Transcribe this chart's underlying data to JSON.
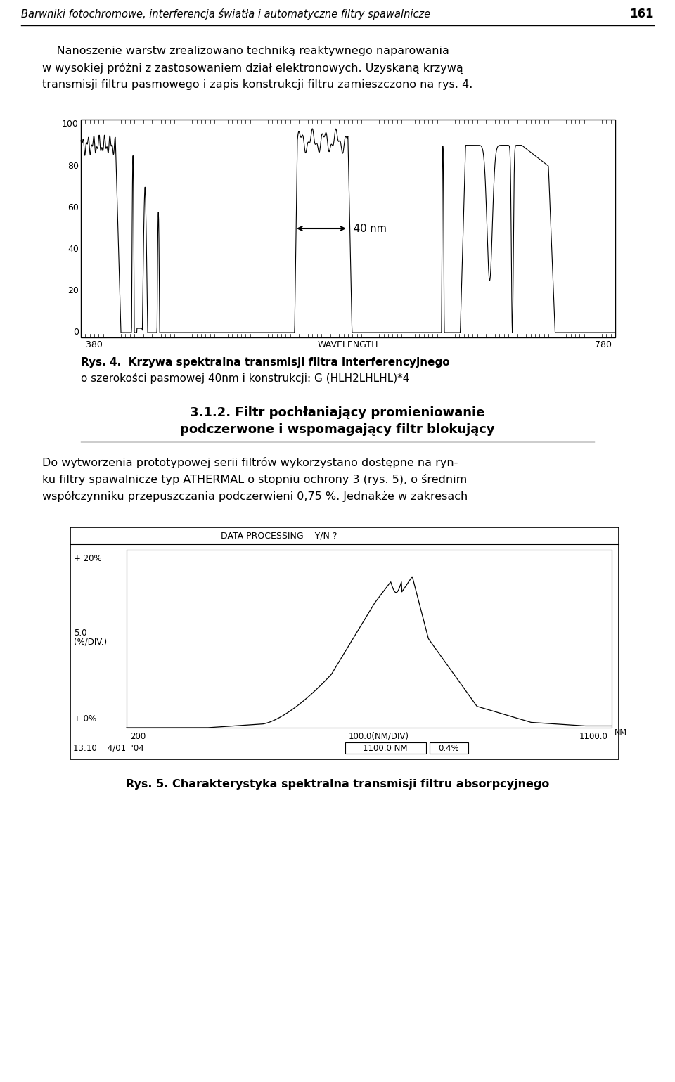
{
  "page_title": "Barwniki fotochromowe, interferencja światła i automatyczne filtry spawalnicze",
  "page_number": "161",
  "fig4_caption_bold": "Rys. 4.  Krzywa spektralna transmisji filtra interferencyjnego",
  "fig4_caption_normal": "o szerokości pasmowej 40nm i konstrukcji: G (HLH2LHLHL)*4",
  "section_line1": "3.1.2. Filtr pochłaniający promieniowanie",
  "section_line2": "podczerwone i wspomagający filtr blokujący",
  "para2_lines": [
    "Do wytworzenia prototypowej serii filtrów wykorzystano dostępne na ryn-",
    "ku filtry spawalnicze typ ATHERMAL o stopniu ochrony 3 (rys. 5), o średnim",
    "współczynniku przepuszczania podczerwieni 0,75 %. Jednakże w zakresach"
  ],
  "fig5_caption": "Rys. 5. Charakterystyka spektralna transmisji filtru absorpcyjnego",
  "arrow_label": "40 nm",
  "fig2_header": "DATA PROCESSING    Y/N ?",
  "fig2_label_top": "+ 20%",
  "fig2_label_bot": "+ 0%",
  "fig2_label_mid1": "5.0",
  "fig2_label_mid2": "(%/DIV.)",
  "fig2_x1": "200",
  "fig2_xmid": "100.0(NM/DIV)",
  "fig2_x2": "1100.0",
  "fig2_nm": "NM",
  "fig2_time": "13:10    4/01  '04",
  "fig2_box1": "1100.0 NM",
  "fig2_box2": "0.4%",
  "para1_lines": [
    "    Nanoszenie warstw zrealizowano techniką reaktywnego naparowania",
    "w wysokiej próżni z zastosowaniem dział elektronowych. Uzyskaną krzywą",
    "transmisji filtru pasmowego i zapis konstrukcji filtru zamieszczono na rys. 4."
  ],
  "background": "#ffffff"
}
